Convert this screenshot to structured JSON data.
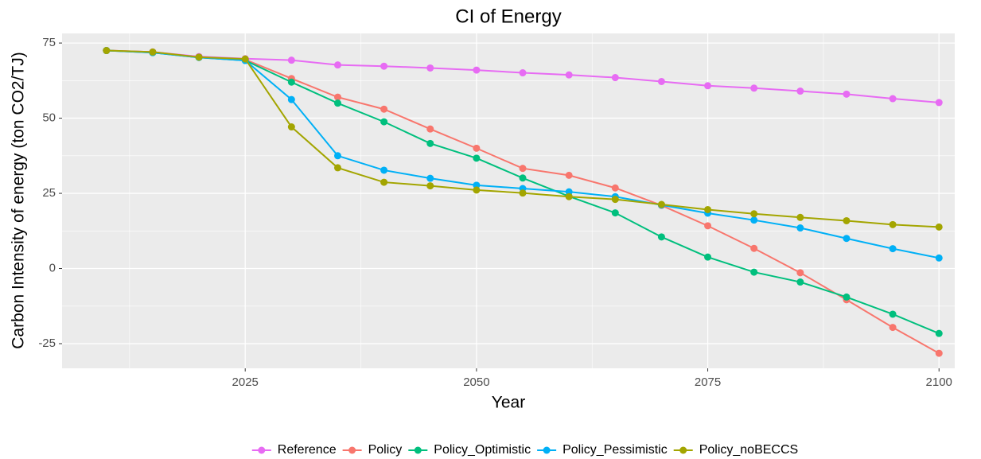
{
  "chart_data": {
    "type": "line",
    "title": "CI of Energy",
    "xlabel": "Year",
    "ylabel": "Carbon Intensity of energy (ton CO2/TJ)",
    "x": [
      2010,
      2015,
      2020,
      2025,
      2030,
      2035,
      2040,
      2045,
      2050,
      2055,
      2060,
      2065,
      2070,
      2075,
      2080,
      2085,
      2090,
      2095,
      2100
    ],
    "series": [
      {
        "name": "Reference",
        "color": "#E76BF3",
        "values": [
          72.5,
          72,
          70.5,
          69.8,
          69.3,
          67.7,
          67.3,
          66.7,
          66,
          65.1,
          64.4,
          63.5,
          62.2,
          60.8,
          60,
          59,
          58,
          56.5,
          55.2
        ]
      },
      {
        "name": "Policy",
        "color": "#F8766D",
        "values": [
          72.5,
          72,
          70.3,
          69.5,
          63.2,
          57,
          53,
          46.4,
          40,
          33.3,
          31,
          26.8,
          21,
          14.2,
          6.7,
          -1.4,
          -10.4,
          -19.6,
          -28.2
        ]
      },
      {
        "name": "Policy_Optimistic",
        "color": "#00BF7D",
        "values": [
          72.5,
          71.8,
          70.2,
          69.2,
          62,
          55,
          48.8,
          41.6,
          36.7,
          30.1,
          24,
          18.5,
          10.5,
          3.8,
          -1.2,
          -4.5,
          -9.5,
          -15.2,
          -21.6
        ]
      },
      {
        "name": "Policy_Pessimistic",
        "color": "#00B0F6",
        "values": [
          72.5,
          71.8,
          70.2,
          69.2,
          56.2,
          37.5,
          32.7,
          30,
          27.7,
          26.6,
          25.5,
          23.9,
          21.1,
          18.4,
          16.1,
          13.5,
          10,
          6.6,
          3.5
        ]
      },
      {
        "name": "Policy_noBECCS",
        "color": "#A3A500",
        "values": [
          72.5,
          72,
          70.3,
          69.7,
          47.1,
          33.5,
          28.7,
          27.5,
          26.1,
          25.1,
          23.9,
          23,
          21.3,
          19.6,
          18.2,
          17,
          15.9,
          14.6,
          13.8
        ]
      }
    ],
    "xlim": [
      2005.2,
      2101.7
    ],
    "xticks": [
      2025,
      2050,
      2075,
      2100
    ],
    "ylim": [
      -33.2,
      78.2
    ],
    "yticks": [
      -25,
      0,
      25,
      50,
      75
    ],
    "grid": true,
    "legend": "bottom"
  }
}
